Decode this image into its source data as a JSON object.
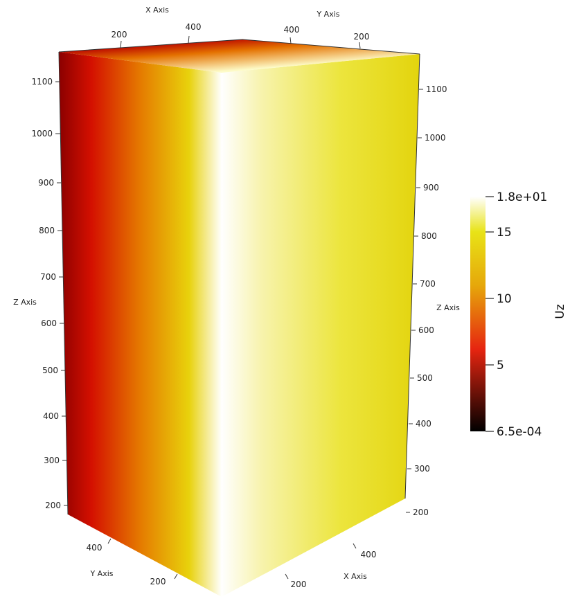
{
  "axes": {
    "x_title": "X Axis",
    "y_title": "Y Axis",
    "z_title": "Z Axis",
    "top_x_ticks": [
      "200",
      "400"
    ],
    "top_y_ticks": [
      "400",
      "200"
    ],
    "bottom_y_ticks": [
      "400",
      "200"
    ],
    "bottom_x_ticks": [
      "400",
      "200"
    ],
    "left_z_ticks": [
      "1100",
      "1000",
      "900",
      "800",
      "700",
      "600",
      "500",
      "400",
      "300",
      "200"
    ],
    "right_z_ticks": [
      "1100",
      "1000",
      "900",
      "800",
      "700",
      "600",
      "500",
      "400",
      "300",
      "200"
    ]
  },
  "colorbar": {
    "title": "Uz",
    "max_label": "1.8e+01",
    "min_label": "6.5e-04",
    "tick_labels": [
      "15",
      "10",
      "5"
    ],
    "colormap": "black-body",
    "colors": [
      "#000000",
      "#e62510",
      "#e6a70a",
      "#e8e317",
      "#ffffff"
    ]
  },
  "colors": {
    "face_dark": "#8e0000",
    "face_red": "#dd1200",
    "face_orange": "#e89a00",
    "face_yellow": "#e6e000",
    "face_white": "#ffffff",
    "face_light": "#f8f6c0"
  }
}
